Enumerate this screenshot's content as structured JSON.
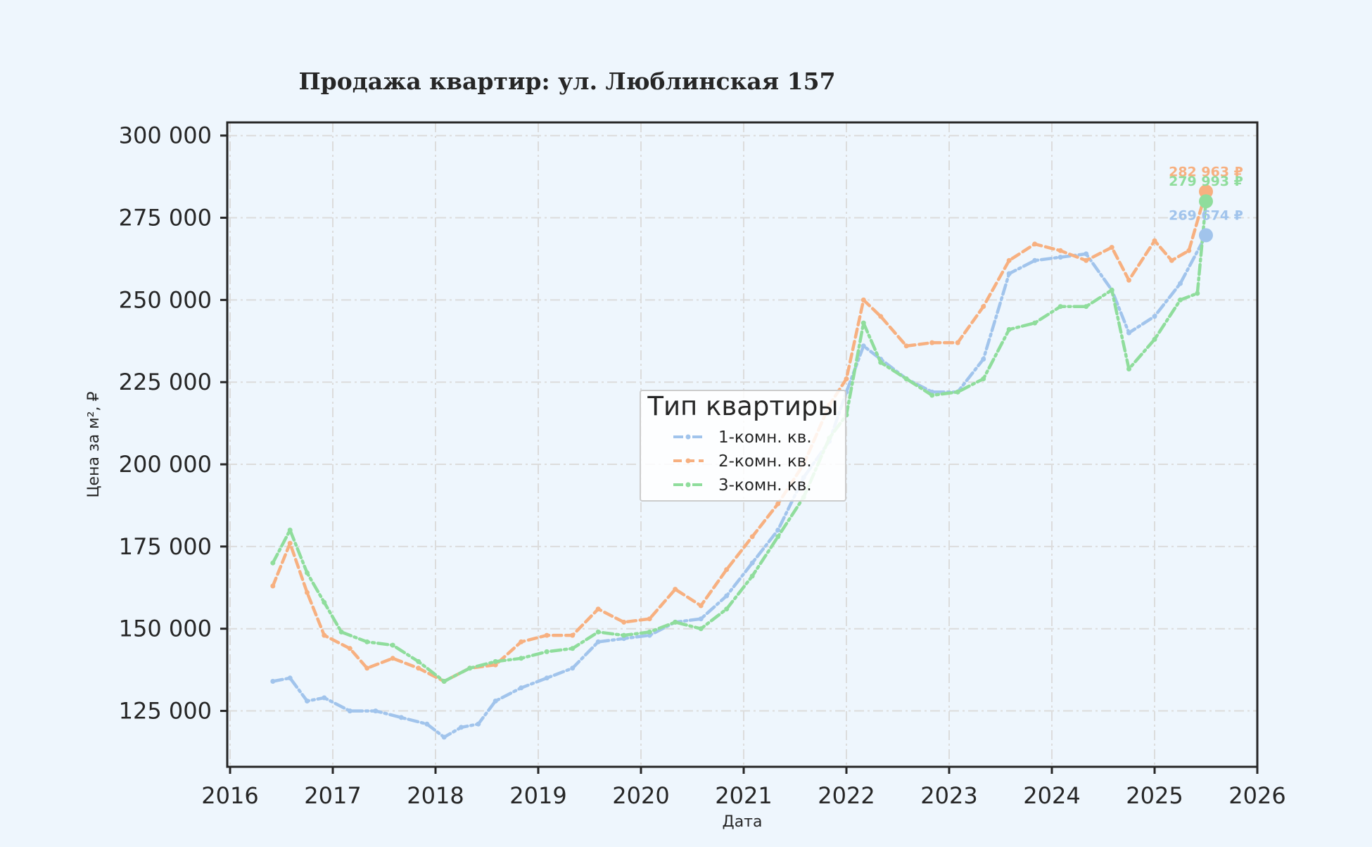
{
  "chart_data": {
    "type": "line",
    "title": "Продажа квартир: ул. Люблинская 157",
    "xlabel": "Дата",
    "ylabel": "Цена за м², ₽",
    "xlim": [
      "2016-01-01",
      "2026-01-01"
    ],
    "ylim": [
      108000,
      304000
    ],
    "x_ticks": [
      "2016",
      "2017",
      "2018",
      "2019",
      "2020",
      "2021",
      "2022",
      "2023",
      "2024",
      "2025",
      "2026"
    ],
    "y_ticks": [
      125000,
      150000,
      175000,
      200000,
      225000,
      250000,
      275000,
      300000
    ],
    "y_tick_labels": [
      "125 000",
      "150 000",
      "175 000",
      "200 000",
      "225 000",
      "250 000",
      "275 000",
      "300 000"
    ],
    "grid": true,
    "legend": {
      "title": "Тип квартиры",
      "placement": "center"
    },
    "series": [
      {
        "name": "1-комн. кв.",
        "color": "#a1c4ec",
        "line_style": "dash-dot",
        "end_label": "269 674 ₽",
        "end_value": 269674,
        "points": [
          [
            "2016-06",
            134000
          ],
          [
            "2016-08",
            135000
          ],
          [
            "2016-10",
            128000
          ],
          [
            "2016-12",
            129000
          ],
          [
            "2017-03",
            125000
          ],
          [
            "2017-06",
            125000
          ],
          [
            "2017-09",
            123000
          ],
          [
            "2017-12",
            121000
          ],
          [
            "2018-02",
            117000
          ],
          [
            "2018-04",
            120000
          ],
          [
            "2018-06",
            121000
          ],
          [
            "2018-08",
            128000
          ],
          [
            "2018-11",
            132000
          ],
          [
            "2019-02",
            135000
          ],
          [
            "2019-05",
            138000
          ],
          [
            "2019-08",
            146000
          ],
          [
            "2019-11",
            147000
          ],
          [
            "2020-02",
            148000
          ],
          [
            "2020-05",
            152000
          ],
          [
            "2020-08",
            153000
          ],
          [
            "2020-11",
            160000
          ],
          [
            "2021-02",
            170000
          ],
          [
            "2021-05",
            180000
          ],
          [
            "2021-08",
            196000
          ],
          [
            "2021-11",
            207000
          ],
          [
            "2022-01",
            222000
          ],
          [
            "2022-03",
            236000
          ],
          [
            "2022-05",
            232000
          ],
          [
            "2022-08",
            226000
          ],
          [
            "2022-11",
            222000
          ],
          [
            "2023-02",
            222000
          ],
          [
            "2023-05",
            232000
          ],
          [
            "2023-08",
            258000
          ],
          [
            "2023-11",
            262000
          ],
          [
            "2024-02",
            263000
          ],
          [
            "2024-05",
            264000
          ],
          [
            "2024-08",
            253000
          ],
          [
            "2024-10",
            240000
          ],
          [
            "2025-01",
            245000
          ],
          [
            "2025-04",
            255000
          ],
          [
            "2025-07",
            269674
          ]
        ]
      },
      {
        "name": "2-комн. кв.",
        "color": "#f7b080",
        "line_style": "dashed",
        "end_label": "282 963 ₽",
        "end_value": 282963,
        "points": [
          [
            "2016-06",
            163000
          ],
          [
            "2016-08",
            176000
          ],
          [
            "2016-10",
            161000
          ],
          [
            "2016-12",
            148000
          ],
          [
            "2017-03",
            144000
          ],
          [
            "2017-05",
            138000
          ],
          [
            "2017-08",
            141000
          ],
          [
            "2017-11",
            138000
          ],
          [
            "2018-02",
            134000
          ],
          [
            "2018-05",
            138000
          ],
          [
            "2018-08",
            139000
          ],
          [
            "2018-11",
            146000
          ],
          [
            "2019-02",
            148000
          ],
          [
            "2019-05",
            148000
          ],
          [
            "2019-08",
            156000
          ],
          [
            "2019-11",
            152000
          ],
          [
            "2020-02",
            153000
          ],
          [
            "2020-05",
            162000
          ],
          [
            "2020-08",
            157000
          ],
          [
            "2020-11",
            168000
          ],
          [
            "2021-02",
            178000
          ],
          [
            "2021-05",
            188000
          ],
          [
            "2021-08",
            200000
          ],
          [
            "2021-11",
            218000
          ],
          [
            "2022-01",
            226000
          ],
          [
            "2022-03",
            250000
          ],
          [
            "2022-05",
            245000
          ],
          [
            "2022-08",
            236000
          ],
          [
            "2022-11",
            237000
          ],
          [
            "2023-02",
            237000
          ],
          [
            "2023-05",
            248000
          ],
          [
            "2023-08",
            262000
          ],
          [
            "2023-11",
            267000
          ],
          [
            "2024-02",
            265000
          ],
          [
            "2024-05",
            262000
          ],
          [
            "2024-08",
            266000
          ],
          [
            "2024-10",
            256000
          ],
          [
            "2025-01",
            268000
          ],
          [
            "2025-03",
            262000
          ],
          [
            "2025-05",
            265000
          ],
          [
            "2025-07",
            282963
          ]
        ]
      },
      {
        "name": "3-комн. кв.",
        "color": "#8fdd9c",
        "line_style": "dash-dot",
        "end_label": "279 993 ₽",
        "end_value": 279993,
        "points": [
          [
            "2016-06",
            170000
          ],
          [
            "2016-08",
            180000
          ],
          [
            "2016-10",
            167000
          ],
          [
            "2016-12",
            158000
          ],
          [
            "2017-02",
            149000
          ],
          [
            "2017-05",
            146000
          ],
          [
            "2017-08",
            145000
          ],
          [
            "2017-11",
            140000
          ],
          [
            "2018-02",
            134000
          ],
          [
            "2018-05",
            138000
          ],
          [
            "2018-08",
            140000
          ],
          [
            "2018-11",
            141000
          ],
          [
            "2019-02",
            143000
          ],
          [
            "2019-05",
            144000
          ],
          [
            "2019-08",
            149000
          ],
          [
            "2019-11",
            148000
          ],
          [
            "2020-02",
            149000
          ],
          [
            "2020-05",
            152000
          ],
          [
            "2020-08",
            150000
          ],
          [
            "2020-11",
            156000
          ],
          [
            "2021-02",
            166000
          ],
          [
            "2021-05",
            178000
          ],
          [
            "2021-08",
            190000
          ],
          [
            "2021-11",
            208000
          ],
          [
            "2022-01",
            215000
          ],
          [
            "2022-03",
            243000
          ],
          [
            "2022-05",
            231000
          ],
          [
            "2022-08",
            226000
          ],
          [
            "2022-11",
            221000
          ],
          [
            "2023-02",
            222000
          ],
          [
            "2023-05",
            226000
          ],
          [
            "2023-08",
            241000
          ],
          [
            "2023-11",
            243000
          ],
          [
            "2024-02",
            248000
          ],
          [
            "2024-05",
            248000
          ],
          [
            "2024-08",
            253000
          ],
          [
            "2024-10",
            229000
          ],
          [
            "2025-01",
            238000
          ],
          [
            "2025-04",
            250000
          ],
          [
            "2025-06",
            252000
          ],
          [
            "2025-07",
            279993
          ]
        ]
      }
    ]
  }
}
